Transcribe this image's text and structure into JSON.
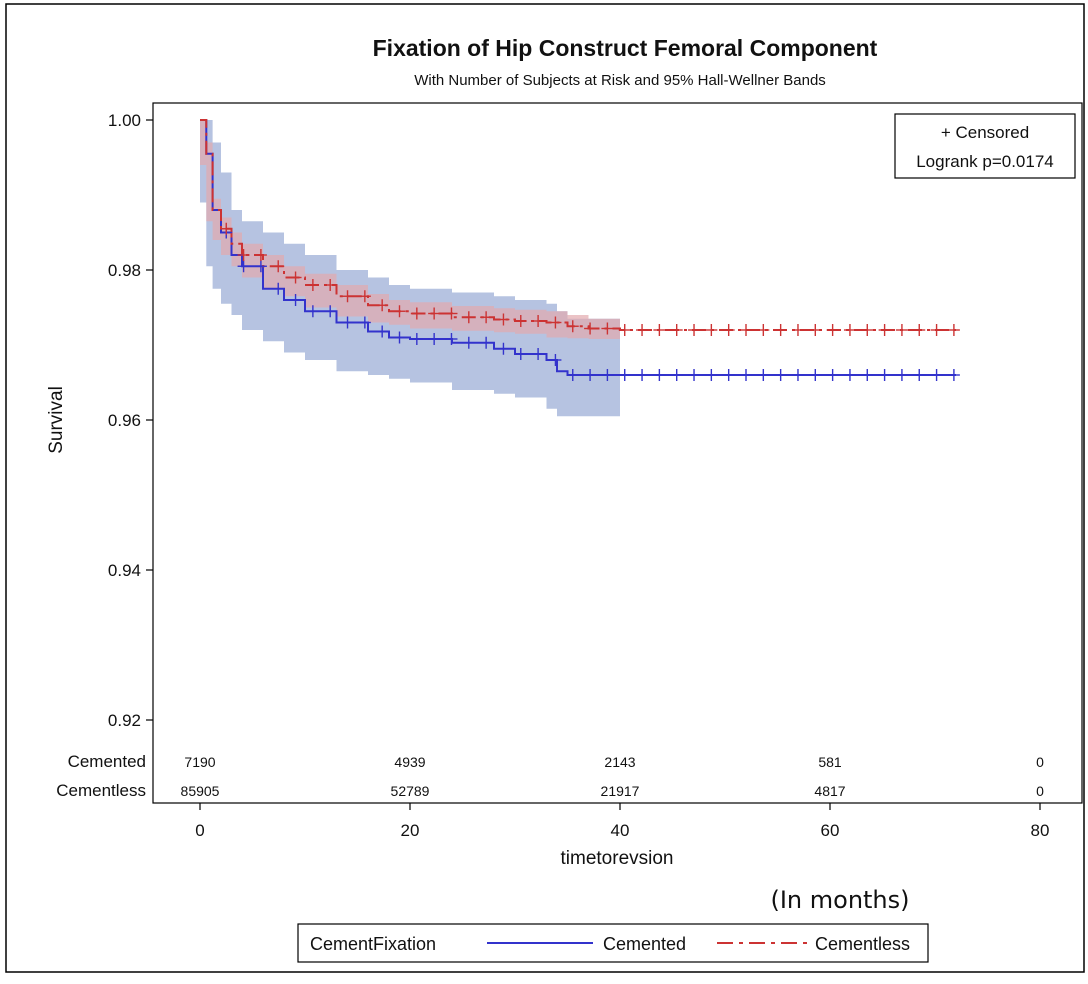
{
  "chart_data": {
    "type": "line",
    "title": "Fixation of Hip Construct Femoral Component",
    "subtitle": "With Number of Subjects at Risk and 95% Hall-Wellner Bands",
    "xlabel": "timetorevsion",
    "x_note": "(In months)",
    "ylabel": "Survival",
    "xlim": [
      -4,
      82
    ],
    "ylim": [
      0.9175,
      1.0015
    ],
    "x_ticks": [
      0,
      20,
      40,
      60,
      80
    ],
    "y_ticks": [
      "1.00",
      "0.98",
      "0.96",
      "0.94",
      "0.92"
    ],
    "y_tick_values": [
      1.0,
      0.98,
      0.96,
      0.94,
      0.92
    ],
    "inset": {
      "line1": "+ Censored",
      "line2": "Logrank p=0.0174",
      "placement": "top-right"
    },
    "legend": {
      "title": "CementFixation",
      "placement": "bottom"
    },
    "censor_marker": "+",
    "series": [
      {
        "name": "Cemented",
        "color": "#3333cc",
        "band_color": "#a9b8dc",
        "x": [
          0,
          0.6,
          1.2,
          2,
          3,
          4,
          6,
          8,
          10,
          13,
          16,
          18,
          20,
          24,
          28,
          30,
          33,
          34,
          35,
          40,
          45,
          50,
          55,
          60,
          65,
          70,
          72
        ],
        "y": [
          1.0,
          0.9955,
          0.988,
          0.985,
          0.982,
          0.9805,
          0.9775,
          0.976,
          0.9745,
          0.973,
          0.9718,
          0.971,
          0.9708,
          0.9703,
          0.9695,
          0.9688,
          0.968,
          0.9665,
          0.966,
          0.966,
          0.966,
          0.966,
          0.966,
          0.966,
          0.966,
          0.966,
          0.966
        ],
        "band_upper": [
          1.0,
          1.0,
          0.997,
          0.993,
          0.988,
          0.9865,
          0.985,
          0.9835,
          0.982,
          0.98,
          0.979,
          0.978,
          0.9775,
          0.977,
          0.9765,
          0.976,
          0.9755,
          0.9745,
          0.9735,
          0.9735
        ],
        "band_lower": [
          0.9985,
          0.989,
          0.9805,
          0.9775,
          0.9755,
          0.974,
          0.972,
          0.9705,
          0.969,
          0.968,
          0.9665,
          0.966,
          0.9655,
          0.965,
          0.964,
          0.9635,
          0.963,
          0.9615,
          0.9605,
          0.9605
        ],
        "band_x": [
          0,
          0.6,
          1.2,
          2,
          3,
          4,
          6,
          8,
          10,
          13,
          16,
          18,
          20,
          24,
          28,
          30,
          33,
          34,
          35,
          40
        ],
        "at_risk": [
          "7190",
          "4939",
          "2143",
          "581",
          "0"
        ]
      },
      {
        "name": "Cementless",
        "color": "#cc3333",
        "band_color": "#e2a9ae",
        "x": [
          0,
          0.6,
          1.2,
          2,
          3,
          4,
          6,
          8,
          10,
          13,
          16,
          18,
          20,
          24,
          28,
          30,
          33,
          35,
          37,
          40,
          45,
          50,
          55,
          60,
          65,
          70,
          72
        ],
        "y": [
          1.0,
          0.9955,
          0.988,
          0.9855,
          0.9835,
          0.982,
          0.9805,
          0.979,
          0.978,
          0.9765,
          0.9753,
          0.9745,
          0.9742,
          0.9737,
          0.9734,
          0.9732,
          0.973,
          0.9725,
          0.9722,
          0.972,
          0.972,
          0.972,
          0.972,
          0.972,
          0.972,
          0.972,
          0.972
        ],
        "band_upper": [
          1.0,
          0.997,
          0.9895,
          0.987,
          0.985,
          0.9835,
          0.982,
          0.9805,
          0.9795,
          0.978,
          0.9768,
          0.976,
          0.9757,
          0.9752,
          0.9749,
          0.9747,
          0.9745,
          0.974,
          0.9735,
          0.9732
        ],
        "band_lower": [
          0.9995,
          0.994,
          0.9865,
          0.984,
          0.982,
          0.9805,
          0.979,
          0.9775,
          0.9765,
          0.975,
          0.9738,
          0.973,
          0.9727,
          0.9722,
          0.9719,
          0.9717,
          0.9715,
          0.971,
          0.9709,
          0.9708
        ],
        "band_x": [
          0,
          0.6,
          1.2,
          2,
          3,
          4,
          6,
          8,
          10,
          13,
          16,
          18,
          20,
          24,
          28,
          30,
          33,
          35,
          37,
          40
        ],
        "at_risk": [
          "85905",
          "52789",
          "21917",
          "4817",
          "0"
        ]
      }
    ],
    "at_risk_x": [
      0,
      20,
      40,
      60,
      80
    ]
  }
}
